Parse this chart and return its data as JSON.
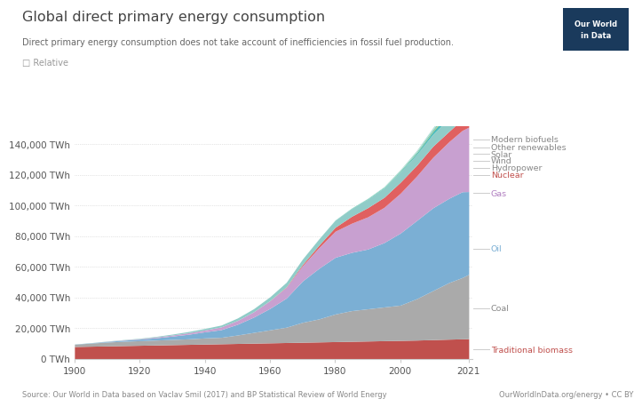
{
  "title": "Global direct primary energy consumption",
  "subtitle": "Direct primary energy consumption does not take account of inefficiencies in fossil fuel production.",
  "checkbox_label": "□ Relative",
  "source": "Source: Our World in Data based on Vaclav Smil (2017) and BP Statistical Review of World Energy",
  "source_right": "OurWorldInData.org/energy • CC BY",
  "logo_text": "Our World\nin Data",
  "background_color": "#ffffff",
  "layers": [
    {
      "name": "Traditional biomass",
      "color": "#c0504d",
      "label_color": "#c0504d"
    },
    {
      "name": "Coal",
      "color": "#aaaaaa",
      "label_color": "#888888"
    },
    {
      "name": "Oil",
      "color": "#7bafd4",
      "label_color": "#7bafd4"
    },
    {
      "name": "Gas",
      "color": "#c8a0d0",
      "label_color": "#b07fc0"
    },
    {
      "name": "Nuclear",
      "color": "#e06060",
      "label_color": "#c0504d"
    },
    {
      "name": "Hydropower",
      "color": "#90ccc8",
      "label_color": "#888888"
    },
    {
      "name": "Wind",
      "color": "#4bbcbc",
      "label_color": "#888888"
    },
    {
      "name": "Solar",
      "color": "#d4b84a",
      "label_color": "#888888"
    },
    {
      "name": "Other renewables",
      "color": "#60c8b0",
      "label_color": "#888888"
    },
    {
      "name": "Modern biofuels",
      "color": "#b8e0d8",
      "label_color": "#888888"
    }
  ],
  "years": [
    1900,
    1905,
    1910,
    1915,
    1920,
    1925,
    1930,
    1935,
    1940,
    1945,
    1950,
    1955,
    1960,
    1965,
    1970,
    1975,
    1980,
    1985,
    1990,
    1995,
    2000,
    2005,
    2010,
    2015,
    2019,
    2021
  ],
  "data": {
    "Traditional biomass": [
      8000,
      8200,
      8400,
      8600,
      8800,
      9000,
      9200,
      9400,
      9600,
      9800,
      10000,
      10200,
      10400,
      10600,
      10800,
      11000,
      11200,
      11400,
      11600,
      11800,
      12000,
      12200,
      12500,
      12800,
      13000,
      13100
    ],
    "Coal": [
      1500,
      2000,
      2500,
      2800,
      3000,
      3200,
      3400,
      3600,
      4000,
      4200,
      5500,
      7000,
      8500,
      10000,
      13000,
      15000,
      18000,
      20000,
      21000,
      22000,
      23000,
      27000,
      32000,
      37000,
      40000,
      42000
    ],
    "Oil": [
      100,
      200,
      400,
      700,
      1000,
      1500,
      2200,
      3000,
      4000,
      5000,
      7000,
      10000,
      14000,
      19000,
      27000,
      33000,
      37000,
      38000,
      39000,
      42000,
      47000,
      51000,
      54000,
      55000,
      56000,
      54000
    ],
    "Gas": [
      0,
      0,
      100,
      200,
      300,
      500,
      700,
      1000,
      1200,
      1800,
      2500,
      3500,
      5000,
      7000,
      10000,
      13500,
      17000,
      19000,
      21000,
      23000,
      26000,
      29000,
      33000,
      37000,
      40000,
      42000
    ],
    "Nuclear": [
      0,
      0,
      0,
      0,
      0,
      0,
      0,
      0,
      0,
      0,
      0,
      0,
      100,
      300,
      800,
      1600,
      2600,
      4500,
      6000,
      6500,
      7200,
      7000,
      7200,
      6700,
      7200,
      7400
    ],
    "Hydropower": [
      50,
      100,
      150,
      200,
      300,
      400,
      600,
      800,
      1000,
      1200,
      1600,
      2000,
      2500,
      3000,
      3500,
      4000,
      4500,
      5000,
      5500,
      6000,
      6500,
      7000,
      7800,
      8500,
      9500,
      9800
    ],
    "Wind": [
      0,
      0,
      0,
      0,
      0,
      0,
      0,
      0,
      0,
      0,
      0,
      0,
      0,
      0,
      0,
      0,
      0,
      10,
      50,
      150,
      400,
      900,
      1800,
      3500,
      5500,
      6500
    ],
    "Solar": [
      0,
      0,
      0,
      0,
      0,
      0,
      0,
      0,
      0,
      0,
      0,
      0,
      0,
      0,
      0,
      0,
      0,
      0,
      10,
      30,
      100,
      200,
      400,
      1200,
      2500,
      3200
    ],
    "Other renewables": [
      0,
      0,
      0,
      0,
      0,
      0,
      0,
      0,
      0,
      0,
      0,
      0,
      0,
      0,
      50,
      100,
      200,
      300,
      400,
      500,
      600,
      700,
      900,
      1100,
      1500,
      1700
    ],
    "Modern biofuels": [
      0,
      0,
      0,
      0,
      0,
      0,
      0,
      0,
      0,
      0,
      0,
      0,
      0,
      0,
      0,
      0,
      50,
      100,
      200,
      400,
      700,
      1000,
      1300,
      1600,
      2000,
      2200
    ]
  },
  "yticks": [
    0,
    20000,
    40000,
    60000,
    80000,
    100000,
    120000,
    140000
  ],
  "ylim": [
    0,
    152000
  ],
  "xlim": [
    1900,
    2022
  ],
  "xtick_years": [
    1900,
    1920,
    1940,
    1960,
    1980,
    2000,
    2021
  ],
  "logo_color": "#1a3a5c"
}
